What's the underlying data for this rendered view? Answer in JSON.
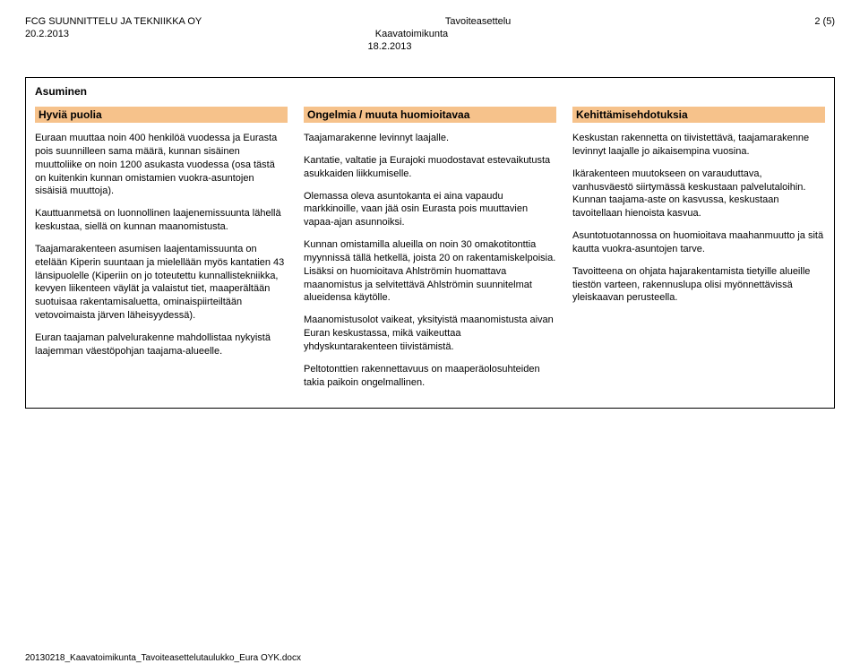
{
  "header": {
    "company": "FCG SUUNNITTELU JA TEKNIIKKA OY",
    "date_left": "20.2.2013",
    "title_center": "Tavoiteasettelu",
    "subtitle_center": "Kaavatoimikunta",
    "date_center": "18.2.2013",
    "page": "2 (5)"
  },
  "section_title": "Asuminen",
  "col_headers": {
    "a": "Hyviä puolia",
    "b": "Ongelmia / muuta huomioitavaa",
    "c": "Kehittämisehdotuksia"
  },
  "col_a": {
    "p1": "Euraan muuttaa noin 400 henkilöä vuodessa ja Eurasta pois suunnilleen sama määrä, kunnan sisäinen muuttoliike on noin 1200 asukasta vuodessa (osa tästä on kuitenkin kunnan omistamien vuokra-asuntojen sisäisiä muuttoja).",
    "p2": "Kauttuanmetsä on luonnollinen laajenemissuunta lähellä keskustaa, siellä on kunnan maanomistusta.",
    "p3": "Taajamarakenteen asumisen laajentamissuunta on etelään Kiperin suuntaan ja mielellään myös kantatien 43 länsipuolelle (Kiperiin on jo toteutettu kunnallistekniikka, kevyen liikenteen väylät ja valaistut tiet, maaperältään suotuisaa rakentamisaluetta, ominaispiirteiltään vetovoimaista järven läheisyydessä).",
    "p4": "Euran taajaman palvelurakenne mahdollistaa nykyistä laajemman väestöpohjan taajama-alueelle."
  },
  "col_b": {
    "p1": "Taajamarakenne levinnyt laajalle.",
    "p2": "Kantatie, valtatie ja Eurajoki muodostavat estevaikutusta asukkaiden liikkumiselle.",
    "p3": "Olemassa oleva asuntokanta ei aina vapaudu markkinoille, vaan jää osin Eurasta pois muuttavien vapaa-ajan asunnoiksi.",
    "p4": "Kunnan omistamilla alueilla on noin 30 omakotitonttia myynnissä tällä hetkellä, joista 20 on rakentamiskelpoisia. Lisäksi on huomioitava Ahlströmin huomattava maanomistus ja selvitettävä Ahlströmin suunnitelmat alueidensa käytölle.",
    "p5": "Maanomistusolot vaikeat, yksityistä maanomistusta aivan Euran keskustassa, mikä vaikeuttaa yhdyskuntarakenteen tiivistämistä.",
    "p6": "Peltotonttien rakennettavuus on maaperäolosuhteiden takia paikoin ongelmallinen."
  },
  "col_c": {
    "p1": "Keskustan rakennetta on tiivistettävä, taajamarakenne levinnyt laajalle jo aikaisempina vuosina.",
    "p2": "Ikärakenteen muutokseen on varauduttava, vanhusväestö siirtymässä keskustaan palvelutaloihin. Kunnan taajama-aste on kasvussa, keskustaan tavoitellaan hienoista kasvua.",
    "p3": "Asuntotuotannossa on huomioitava maahanmuutto ja sitä kautta vuokra-asuntojen tarve.",
    "p4": "Tavoitteena on ohjata hajarakentamista tietyille alueille tiestön varteen, rakennuslupa olisi myönnettävissä yleiskaavan perusteella."
  },
  "footer": "20130218_Kaavatoimikunta_Tavoiteasettelutaulukko_Eura OYK.docx",
  "colors": {
    "header_bg": "#f6c28b",
    "border": "#000000",
    "text": "#000000",
    "page_bg": "#ffffff"
  }
}
